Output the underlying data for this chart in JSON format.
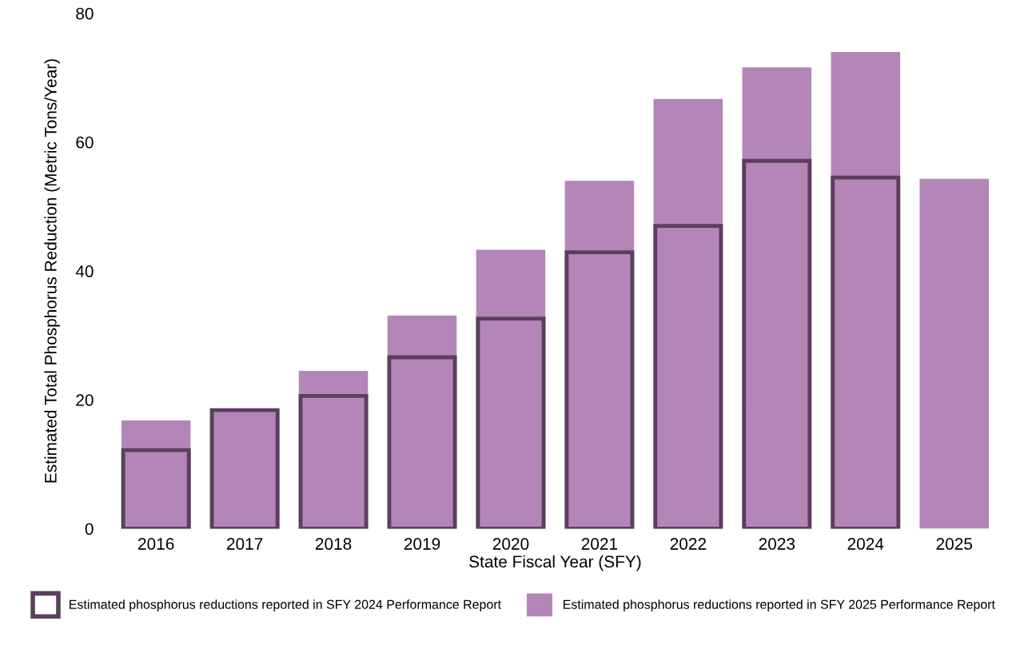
{
  "chart_data": {
    "type": "bar",
    "xlabel": "State Fiscal Year (SFY)",
    "ylabel": "Estimated Total Phosphorus Reduction (Metric Tons/Year)",
    "categories": [
      "2016",
      "2017",
      "2018",
      "2019",
      "2020",
      "2021",
      "2022",
      "2023",
      "2024",
      "2025"
    ],
    "series": [
      {
        "name": "Estimated phosphorus reductions reported in SFY 2024 Performance Report",
        "color": "#5b3f5d",
        "values": [
          12.2,
          18.4,
          20.6,
          26.6,
          32.6,
          42.9,
          47.0,
          57.1,
          54.5,
          null
        ]
      },
      {
        "name": "Estimated phosphorus reductions reported in SFY 2025 Performance Report",
        "color": "#b386b7",
        "values": [
          16.8,
          18.5,
          24.5,
          33.1,
          43.3,
          54.0,
          66.7,
          71.6,
          74.0,
          54.3
        ]
      }
    ],
    "ylim": [
      0,
      80
    ],
    "yticks": [
      0,
      20,
      40,
      60,
      80
    ],
    "grid": false,
    "legend": "bottom"
  }
}
